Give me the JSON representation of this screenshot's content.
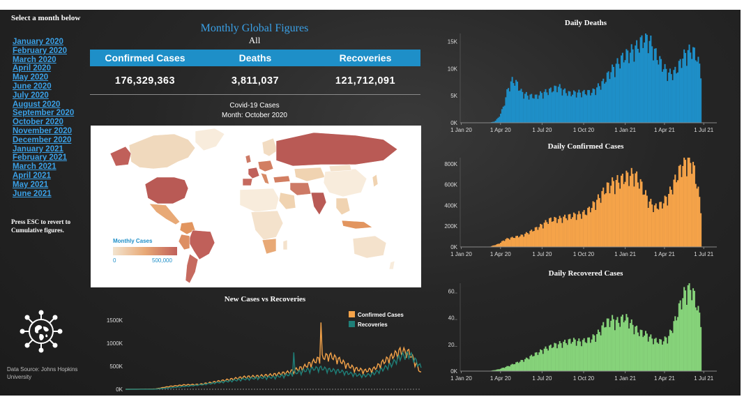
{
  "sidebar": {
    "title": "Select a month below",
    "months": [
      "January 2020",
      "February 2020",
      "March 2020",
      "April 2020",
      "May 2020",
      "June 2020",
      "July 2020",
      "August 2020",
      "September 2020",
      "October 2020",
      "November 2020",
      "December 2020",
      "January 2021",
      "February 2021",
      "March 2021",
      "April 2021",
      "May 2021",
      "June 2021"
    ],
    "esc_note": "Press ESC to revert to Cumulative figures.",
    "data_source": "Data Source: Johns Hopkins University"
  },
  "header": {
    "title": "Monthly Global Figures",
    "subtitle": "All"
  },
  "kpis": {
    "labels": [
      "Confirmed Cases",
      "Deaths",
      "Recoveries"
    ],
    "values": [
      "176,329,363",
      "3,811,037",
      "121,712,091"
    ]
  },
  "map": {
    "title": "Covid-19 Cases",
    "subtitle": "Month: October 2020",
    "legend_title": "Monthly Cases",
    "legend_min": "0",
    "legend_max": "500,000",
    "colors": {
      "low": "#f3e4cf",
      "mid": "#e8a976",
      "high": "#c0605a"
    }
  },
  "chart_data": [
    {
      "type": "bar",
      "title": "Daily Deaths",
      "color": "#1e8fc8",
      "x_ticks": [
        "1 Jan 20",
        "1 Apr 20",
        "1 Jul 20",
        "1 Oct 20",
        "1 Jan 21",
        "1 Apr 21",
        "1 Jul 21"
      ],
      "y_ticks": [
        "0K",
        "5K",
        "10K",
        "15K"
      ],
      "ylim": [
        0,
        18000
      ],
      "x_range": [
        "2020-01-22",
        "2021-06-16"
      ],
      "points": [
        [
          0,
          0
        ],
        [
          0.07,
          0
        ],
        [
          0.1,
          200
        ],
        [
          0.12,
          1000
        ],
        [
          0.14,
          3000
        ],
        [
          0.16,
          6500
        ],
        [
          0.18,
          8200
        ],
        [
          0.2,
          7500
        ],
        [
          0.22,
          5800
        ],
        [
          0.25,
          5200
        ],
        [
          0.28,
          5000
        ],
        [
          0.3,
          5500
        ],
        [
          0.33,
          6000
        ],
        [
          0.36,
          6500
        ],
        [
          0.38,
          7000
        ],
        [
          0.4,
          6200
        ],
        [
          0.43,
          5600
        ],
        [
          0.46,
          5800
        ],
        [
          0.5,
          5800
        ],
        [
          0.53,
          6000
        ],
        [
          0.55,
          6800
        ],
        [
          0.58,
          8000
        ],
        [
          0.6,
          9500
        ],
        [
          0.63,
          11000
        ],
        [
          0.66,
          12500
        ],
        [
          0.69,
          13500
        ],
        [
          0.72,
          14500
        ],
        [
          0.74,
          15500
        ],
        [
          0.76,
          16500
        ],
        [
          0.78,
          15500
        ],
        [
          0.8,
          13500
        ],
        [
          0.82,
          12000
        ],
        [
          0.84,
          10500
        ],
        [
          0.86,
          9500
        ],
        [
          0.88,
          9500
        ],
        [
          0.9,
          10500
        ],
        [
          0.92,
          12500
        ],
        [
          0.94,
          13500
        ],
        [
          0.96,
          14000
        ],
        [
          0.98,
          13000
        ],
        [
          1,
          10000
        ]
      ]
    },
    {
      "type": "bar",
      "title": "Daily Confirmed Cases",
      "color": "#f5a349",
      "x_ticks": [
        "1 Jan 20",
        "1 Apr 20",
        "1 Jul 20",
        "1 Oct 20",
        "1 Jan 21",
        "1 Apr 21",
        "1 Jul 21"
      ],
      "y_ticks": [
        "0K",
        "200K",
        "400K",
        "600K",
        "800K"
      ],
      "ylim": [
        0,
        900000
      ],
      "x_range": [
        "2020-01-22",
        "2021-06-16"
      ],
      "points": [
        [
          0,
          0
        ],
        [
          0.08,
          2000
        ],
        [
          0.12,
          30000
        ],
        [
          0.15,
          75000
        ],
        [
          0.18,
          90000
        ],
        [
          0.22,
          110000
        ],
        [
          0.26,
          150000
        ],
        [
          0.3,
          200000
        ],
        [
          0.34,
          260000
        ],
        [
          0.38,
          270000
        ],
        [
          0.42,
          290000
        ],
        [
          0.46,
          310000
        ],
        [
          0.5,
          330000
        ],
        [
          0.53,
          400000
        ],
        [
          0.56,
          480000
        ],
        [
          0.59,
          570000
        ],
        [
          0.62,
          620000
        ],
        [
          0.65,
          640000
        ],
        [
          0.68,
          680000
        ],
        [
          0.71,
          700000
        ],
        [
          0.74,
          600000
        ],
        [
          0.77,
          450000
        ],
        [
          0.8,
          380000
        ],
        [
          0.83,
          410000
        ],
        [
          0.86,
          500000
        ],
        [
          0.89,
          650000
        ],
        [
          0.92,
          790000
        ],
        [
          0.95,
          860000
        ],
        [
          0.97,
          750000
        ],
        [
          0.99,
          520000
        ],
        [
          1,
          380000
        ]
      ]
    },
    {
      "type": "bar",
      "title": "Daily Recovered Cases",
      "color": "#86d37a",
      "x_ticks": [
        "1 Jan 20",
        "1 Apr 20",
        "1 Jul 20",
        "1 Oct 20",
        "1 Jan 21",
        "1 Apr 21",
        "1 Jul 21"
      ],
      "y_ticks": [
        "0K",
        "20..",
        "40..",
        "60.."
      ],
      "ylim": [
        0,
        750000
      ],
      "x_range": [
        "2020-01-22",
        "2021-06-16"
      ],
      "points": [
        [
          0,
          0
        ],
        [
          0.08,
          1000
        ],
        [
          0.12,
          15000
        ],
        [
          0.16,
          40000
        ],
        [
          0.2,
          70000
        ],
        [
          0.24,
          100000
        ],
        [
          0.28,
          140000
        ],
        [
          0.32,
          180000
        ],
        [
          0.36,
          210000
        ],
        [
          0.4,
          230000
        ],
        [
          0.44,
          250000
        ],
        [
          0.48,
          240000
        ],
        [
          0.52,
          260000
        ],
        [
          0.55,
          300000
        ],
        [
          0.58,
          380000
        ],
        [
          0.61,
          420000
        ],
        [
          0.64,
          400000
        ],
        [
          0.67,
          440000
        ],
        [
          0.7,
          380000
        ],
        [
          0.73,
          320000
        ],
        [
          0.76,
          300000
        ],
        [
          0.8,
          250000
        ],
        [
          0.83,
          240000
        ],
        [
          0.86,
          280000
        ],
        [
          0.89,
          420000
        ],
        [
          0.92,
          600000
        ],
        [
          0.95,
          700000
        ],
        [
          0.97,
          620000
        ],
        [
          0.99,
          480000
        ],
        [
          1,
          420000
        ]
      ]
    },
    {
      "type": "line",
      "title": "New Cases vs Recoveries",
      "x_range": [
        "2020-01-22",
        "2021-06-16"
      ],
      "y_ticks": [
        "0K",
        "500K",
        "1000K",
        "1500K"
      ],
      "ylim": [
        0,
        1600000
      ],
      "series": [
        {
          "name": "Confirmed Cases",
          "color": "#f5a349",
          "points": [
            [
              0,
              0
            ],
            [
              0.1,
              5000
            ],
            [
              0.15,
              60000
            ],
            [
              0.2,
              90000
            ],
            [
              0.25,
              100000
            ],
            [
              0.3,
              150000
            ],
            [
              0.35,
              200000
            ],
            [
              0.4,
              250000
            ],
            [
              0.45,
              270000
            ],
            [
              0.5,
              300000
            ],
            [
              0.55,
              350000
            ],
            [
              0.6,
              450000
            ],
            [
              0.63,
              550000
            ],
            [
              0.66,
              650000
            ],
            [
              0.69,
              700000
            ],
            [
              0.72,
              620000
            ],
            [
              0.75,
              500000
            ],
            [
              0.78,
              420000
            ],
            [
              0.81,
              380000
            ],
            [
              0.84,
              420000
            ],
            [
              0.87,
              560000
            ],
            [
              0.9,
              680000
            ],
            [
              0.93,
              800000
            ],
            [
              0.96,
              760000
            ],
            [
              0.98,
              550000
            ],
            [
              1,
              330000
            ]
          ]
        },
        {
          "name": "Recoveries",
          "color": "#1f7f78",
          "points": [
            [
              0,
              0
            ],
            [
              0.1,
              2000
            ],
            [
              0.15,
              30000
            ],
            [
              0.2,
              60000
            ],
            [
              0.25,
              90000
            ],
            [
              0.3,
              130000
            ],
            [
              0.35,
              170000
            ],
            [
              0.4,
              210000
            ],
            [
              0.45,
              240000
            ],
            [
              0.5,
              250000
            ],
            [
              0.55,
              300000
            ],
            [
              0.6,
              380000
            ],
            [
              0.63,
              420000
            ],
            [
              0.66,
              440000
            ],
            [
              0.69,
              400000
            ],
            [
              0.72,
              380000
            ],
            [
              0.75,
              340000
            ],
            [
              0.78,
              300000
            ],
            [
              0.81,
              280000
            ],
            [
              0.84,
              330000
            ],
            [
              0.87,
              420000
            ],
            [
              0.9,
              520000
            ],
            [
              0.93,
              680000
            ],
            [
              0.96,
              730000
            ],
            [
              0.98,
              600000
            ],
            [
              1,
              450000
            ]
          ]
        }
      ]
    }
  ]
}
